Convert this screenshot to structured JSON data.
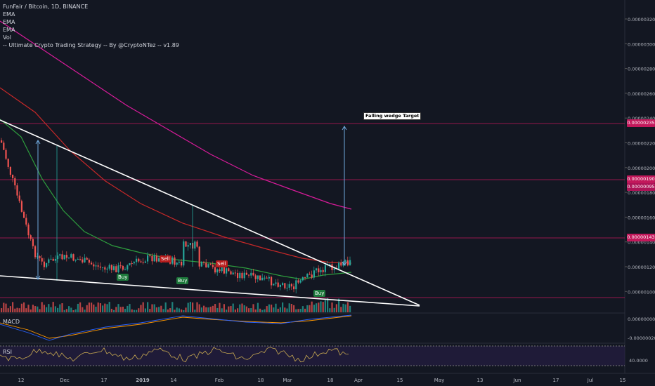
{
  "legend": {
    "title": "FunFair / Bitcoin, 1D, BINANCE",
    "lines": [
      "EMA",
      "EMA",
      "EMA",
      "Vol",
      "-- Ultimate Crypto Trading Strategy -- By @CryptoNTez -- v1.89"
    ]
  },
  "price_axis_labels": [
    "0.00000320",
    "0.00000300",
    "0.00000280",
    "0.00000260",
    "0.00000240",
    "0.00000220",
    "0.00000200",
    "0.00000180",
    "0.00000160",
    "0.00000140",
    "0.00000120",
    "0.00000100"
  ],
  "price_tags": [
    {
      "text": "0.00000235",
      "color": "#c2185b"
    },
    {
      "text": "0.00000190",
      "color": "#c2185b"
    },
    {
      "text": "0.00000095",
      "color": "#c2185b"
    },
    {
      "text": "0.00000143",
      "color": "#c2185b"
    }
  ],
  "macd": {
    "label": "MACD",
    "axis": [
      "0.00000000",
      "-0.00000020"
    ]
  },
  "rsi": {
    "label": "RSI",
    "axis": [
      "40.0000"
    ]
  },
  "time_axis": [
    "12",
    "Dec",
    "17",
    "2019",
    "14",
    "Feb",
    "18",
    "Mar",
    "18",
    "Apr",
    "15",
    "May",
    "13",
    "Jun",
    "17",
    "Jul",
    "15"
  ],
  "signals": [
    {
      "text": "Sell",
      "type": "sell"
    },
    {
      "text": "Buy",
      "type": "buy"
    },
    {
      "text": "Buy",
      "type": "buy"
    },
    {
      "text": "Sell",
      "type": "sell"
    },
    {
      "text": "Buy",
      "type": "buy"
    }
  ],
  "annotation": "Falling wedge Target",
  "colors": {
    "up": "#26a69a",
    "down": "#ef5350",
    "ema_green": "#2e9e3e",
    "ema_red": "#c62828",
    "ema_magenta": "#d81b9a",
    "hline": "#c2185b",
    "wedge": "#ffffff",
    "arrow": "#6fa8dc"
  }
}
